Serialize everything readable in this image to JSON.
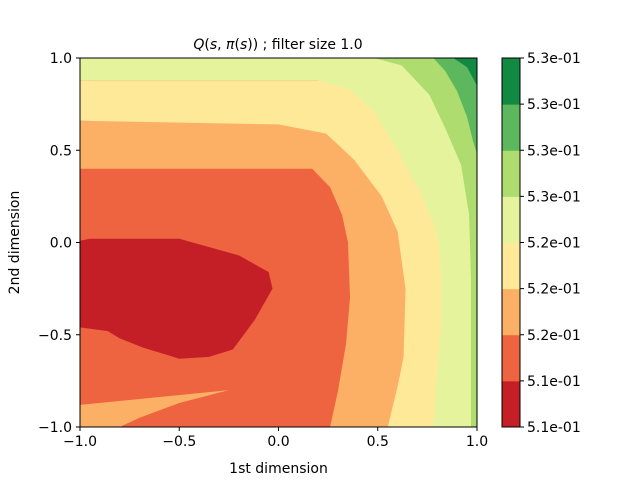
{
  "chart_data": {
    "type": "contourf",
    "title_parts": {
      "q": "Q",
      "open1": "(",
      "s": "s",
      "comma": ", ",
      "pi": "π",
      "open2": "(",
      "s2": "s",
      "close": "))",
      "rest": " ; filter size 1.0"
    },
    "xlabel": "1st dimension",
    "ylabel": "2nd dimension",
    "xlim": [
      -1.0,
      1.0
    ],
    "ylim": [
      -1.0,
      1.0
    ],
    "xticks": [
      -1.0,
      -0.5,
      0.0,
      0.5,
      1.0
    ],
    "yticks": [
      -1.0,
      -0.5,
      0.0,
      0.5,
      1.0
    ],
    "xtick_labels": [
      "−1.0",
      "−0.5",
      "0.0",
      "0.5",
      "1.0"
    ],
    "ytick_labels": [
      "−1.0",
      "−0.5",
      "0.0",
      "0.5",
      "1.0"
    ],
    "colormap": "RdYlGn",
    "colorbar": {
      "tick_labels": [
        "5.1e-01",
        "5.1e-01",
        "5.2e-01",
        "5.2e-01",
        "5.2e-01",
        "5.3e-01",
        "5.3e-01",
        "5.3e-01",
        "5.3e-01"
      ],
      "colors": [
        "#c41f27",
        "#ee6340",
        "#fcb065",
        "#fee999",
        "#e5f49c",
        "#aedc6f",
        "#5cb75d",
        "#128943"
      ]
    },
    "levels": [
      {
        "index": 0,
        "color": "#ee6340",
        "points": [
          [
            -1.0,
            -0.88
          ],
          [
            -0.8,
            -1.0
          ],
          [
            -1.0,
            -1.0
          ]
        ]
      },
      {
        "index": 1,
        "color": "#fcb065",
        "points": [
          [
            -1.0,
            0.66
          ],
          [
            1.0,
            0.66
          ],
          [
            1.0,
            -1.0
          ],
          [
            -1.0,
            -1.0
          ]
        ]
      },
      {
        "index": 2,
        "color": "#fee999",
        "points": [
          [
            -1.0,
            0.88
          ],
          [
            1.0,
            0.88
          ],
          [
            1.0,
            -1.0
          ],
          [
            0.55,
            -1.0
          ],
          [
            0.6,
            -0.78
          ],
          [
            0.63,
            -0.62
          ],
          [
            0.64,
            -0.25
          ],
          [
            0.6,
            0.06
          ],
          [
            0.52,
            0.25
          ],
          [
            0.38,
            0.45
          ],
          [
            0.24,
            0.59
          ],
          [
            0.0,
            0.64
          ],
          [
            -1.0,
            0.66
          ]
        ]
      },
      {
        "index": 3,
        "color": "#e5f49c",
        "points": [
          [
            0.1,
            1.0
          ],
          [
            1.0,
            1.0
          ],
          [
            1.0,
            -1.0
          ],
          [
            0.78,
            -1.0
          ],
          [
            0.8,
            -0.7
          ],
          [
            0.82,
            -0.45
          ],
          [
            0.82,
            -0.15
          ],
          [
            0.8,
            0.05
          ],
          [
            0.72,
            0.26
          ],
          [
            0.6,
            0.5
          ],
          [
            0.48,
            0.71
          ],
          [
            0.36,
            0.83
          ],
          [
            0.2,
            0.88
          ],
          [
            -1.0,
            0.88
          ],
          [
            -1.0,
            1.0
          ]
        ]
      },
      {
        "index": 4,
        "color": "#aedc6f",
        "points": [
          [
            0.48,
            1.0
          ],
          [
            1.0,
            1.0
          ],
          [
            1.0,
            -1.0
          ],
          [
            0.97,
            -1.0
          ],
          [
            0.97,
            -0.6
          ],
          [
            0.97,
            -0.2
          ],
          [
            0.96,
            0.15
          ],
          [
            0.92,
            0.42
          ],
          [
            0.84,
            0.62
          ],
          [
            0.76,
            0.8
          ],
          [
            0.62,
            0.96
          ]
        ]
      },
      {
        "index": 5,
        "color": "#5cb75d",
        "points": [
          [
            0.78,
            1.0
          ],
          [
            1.0,
            1.0
          ],
          [
            1.0,
            0.48
          ],
          [
            0.98,
            0.55
          ],
          [
            0.95,
            0.68
          ],
          [
            0.9,
            0.82
          ],
          [
            0.84,
            0.93
          ]
        ]
      },
      {
        "index": 6,
        "color": "#128943",
        "points": [
          [
            0.88,
            1.0
          ],
          [
            1.0,
            1.0
          ],
          [
            1.0,
            0.85
          ],
          [
            0.95,
            0.95
          ]
        ]
      },
      {
        "index": 7,
        "color": "#ee6340",
        "points": [
          [
            -1.0,
            0.4
          ],
          [
            0.17,
            0.4
          ],
          [
            0.26,
            0.3
          ],
          [
            0.32,
            0.15
          ],
          [
            0.35,
            0.0
          ],
          [
            0.36,
            -0.3
          ],
          [
            0.34,
            -0.55
          ],
          [
            0.3,
            -0.8
          ],
          [
            0.26,
            -1.0
          ],
          [
            -0.8,
            -1.0
          ],
          [
            -0.7,
            -0.95
          ],
          [
            -0.5,
            -0.87
          ],
          [
            -0.25,
            -0.8
          ],
          [
            -1.0,
            -0.88
          ]
        ]
      },
      {
        "index": 8,
        "color": "#c41f27",
        "points": [
          [
            -1.0,
            0.01
          ],
          [
            -0.95,
            0.02
          ],
          [
            -0.5,
            0.02
          ],
          [
            -0.2,
            -0.07
          ],
          [
            -0.05,
            -0.16
          ],
          [
            -0.03,
            -0.25
          ],
          [
            -0.12,
            -0.42
          ],
          [
            -0.23,
            -0.58
          ],
          [
            -0.35,
            -0.62
          ],
          [
            -0.5,
            -0.63
          ],
          [
            -0.56,
            -0.61
          ],
          [
            -0.68,
            -0.57
          ],
          [
            -0.8,
            -0.52
          ],
          [
            -0.86,
            -0.48
          ],
          [
            -1.0,
            -0.46
          ]
        ]
      }
    ]
  }
}
